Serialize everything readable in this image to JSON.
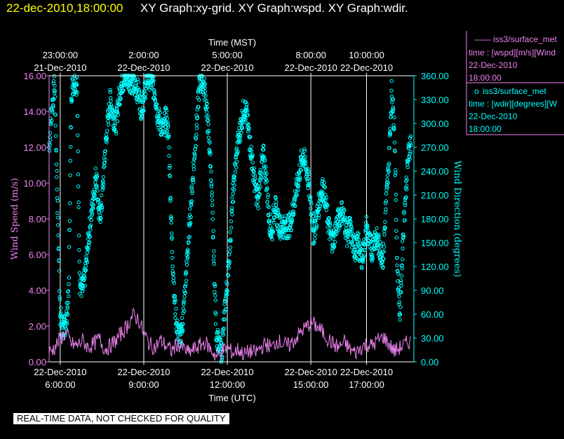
{
  "header": {
    "datetime": "22-dec-2010,18:00:00",
    "graphs": "XY Graph:xy-grid.  XY Graph:wspd.  XY Graph:wdir."
  },
  "footer": {
    "note": "REAL-TIME DATA, NOT CHECKED FOR QUALITY"
  },
  "legend": {
    "wspd": {
      "symbol": "——",
      "source": "iss3/surface_met",
      "var": "time : [wspd][m/s][Wind",
      "date": "22-Dec-2010",
      "time": "18:00:00"
    },
    "wdir": {
      "symbol": "o",
      "source": "iss3/surface_met",
      "var": "time : [wdir][degrees][W",
      "date": "22-Dec-2010",
      "time": "18:00:00"
    }
  },
  "colors": {
    "wspd": "#ee82ee",
    "wdir": "#00ffff",
    "grid": "#ffffff",
    "header_date": "#ffff00"
  },
  "chart_data": {
    "type": "line",
    "grid": true,
    "xlabel_bottom": "Time (UTC)",
    "xlabel_top": "Time (MST)",
    "ylabel_left": "Wind Speed (m/s)",
    "ylabel_right": "Wind Direction (degrees)",
    "xlim_hours_utc": [
      5.6,
      18.7
    ],
    "ylim_left": [
      0,
      16
    ],
    "ylim_right": [
      0,
      360
    ],
    "bottom_ticks": [
      {
        "hour": 6,
        "date": "22-Dec-2010",
        "time": "6:00:00"
      },
      {
        "hour": 9,
        "date": "22-Dec-2010",
        "time": "9:00:00"
      },
      {
        "hour": 12,
        "date": "22-Dec-2010",
        "time": "12:00:00"
      },
      {
        "hour": 15,
        "date": "22-Dec-2010",
        "time": "15:00:00"
      },
      {
        "hour": 17,
        "date": "22-Dec-2010",
        "time": "17:00:00"
      }
    ],
    "top_ticks": [
      {
        "hour": 6,
        "time": "23:00:00",
        "date": "21-Dec-2010"
      },
      {
        "hour": 9,
        "time": "2:00:00",
        "date": "22-Dec-2010"
      },
      {
        "hour": 12,
        "time": "5:00:00",
        "date": "22-Dec-2010"
      },
      {
        "hour": 15,
        "time": "8:00:00",
        "date": "22-Dec-2010"
      },
      {
        "hour": 17,
        "time": "10:00:00",
        "date": "22-Dec-2010"
      }
    ],
    "left_ticks": [
      "0.00",
      "2.00",
      "4.00",
      "6.00",
      "8.00",
      "10.00",
      "12.00",
      "14.00",
      "16.00"
    ],
    "right_ticks": [
      "0.00",
      "30.00",
      "60.00",
      "90.00",
      "120.00",
      "150.00",
      "180.00",
      "210.00",
      "240.00",
      "270.00",
      "300.00",
      "330.00",
      "360.00"
    ],
    "series": [
      {
        "name": "iss3/surface_met wspd",
        "style": "line",
        "axis": "left",
        "x": [
          5.6,
          5.8,
          6.0,
          6.2,
          6.4,
          6.6,
          6.8,
          7.0,
          7.2,
          7.4,
          7.6,
          7.8,
          8.0,
          8.2,
          8.4,
          8.6,
          8.8,
          9.0,
          9.2,
          9.4,
          9.6,
          9.8,
          10.0,
          10.2,
          10.4,
          10.6,
          10.8,
          11.0,
          11.2,
          11.4,
          11.6,
          11.8,
          12.0,
          12.2,
          12.4,
          12.6,
          12.8,
          13.0,
          13.2,
          13.4,
          13.6,
          13.8,
          14.0,
          14.2,
          14.4,
          14.6,
          14.8,
          15.0,
          15.2,
          15.4,
          15.6,
          15.8,
          16.0,
          16.2,
          16.4,
          16.6,
          16.8,
          17.0,
          17.2,
          17.4,
          17.6,
          17.8,
          18.0,
          18.2,
          18.4,
          18.6
        ],
        "values": [
          0.5,
          0.8,
          1.3,
          1.6,
          1.0,
          0.9,
          1.2,
          0.8,
          1.0,
          1.3,
          0.7,
          0.9,
          1.2,
          1.6,
          2.0,
          2.6,
          2.4,
          1.6,
          1.0,
          0.8,
          1.2,
          0.9,
          0.6,
          1.0,
          0.8,
          0.5,
          0.7,
          0.9,
          1.1,
          0.7,
          0.3,
          0.6,
          0.8,
          0.5,
          0.7,
          0.4,
          0.6,
          0.5,
          0.8,
          1.0,
          0.8,
          1.2,
          1.0,
          0.9,
          1.2,
          1.6,
          1.9,
          2.2,
          2.0,
          1.7,
          1.3,
          1.0,
          0.8,
          1.1,
          0.7,
          0.5,
          0.8,
          1.0,
          0.9,
          1.2,
          1.4,
          1.0,
          0.6,
          0.8,
          1.0,
          1.2
        ]
      },
      {
        "name": "iss3/surface_met wdir",
        "style": "scatter",
        "axis": "right",
        "x": [
          5.6,
          5.7,
          5.8,
          5.9,
          6.0,
          6.1,
          6.2,
          6.3,
          6.4,
          6.5,
          6.6,
          6.7,
          6.8,
          6.9,
          7.0,
          7.1,
          7.2,
          7.3,
          7.4,
          7.5,
          7.6,
          7.7,
          7.8,
          7.9,
          8.0,
          8.1,
          8.2,
          8.3,
          8.4,
          8.5,
          8.6,
          8.7,
          8.8,
          8.9,
          9.0,
          9.1,
          9.2,
          9.3,
          9.4,
          9.5,
          9.6,
          9.7,
          9.8,
          9.9,
          10.0,
          10.1,
          10.2,
          10.3,
          10.4,
          10.5,
          10.6,
          10.7,
          10.8,
          10.9,
          11.0,
          11.1,
          11.2,
          11.3,
          11.4,
          11.5,
          11.6,
          11.7,
          11.8,
          11.9,
          12.0,
          12.1,
          12.2,
          12.3,
          12.4,
          12.5,
          12.6,
          12.7,
          12.8,
          12.9,
          13.0,
          13.1,
          13.2,
          13.3,
          13.4,
          13.5,
          13.6,
          13.7,
          13.8,
          13.9,
          14.0,
          14.1,
          14.2,
          14.3,
          14.4,
          14.5,
          14.6,
          14.7,
          14.8,
          14.9,
          15.0,
          15.1,
          15.2,
          15.3,
          15.4,
          15.5,
          15.6,
          15.7,
          15.8,
          15.9,
          16.0,
          16.1,
          16.2,
          16.3,
          16.4,
          16.5,
          16.6,
          16.7,
          16.8,
          16.9,
          17.0,
          17.1,
          17.2,
          17.3,
          17.4,
          17.5,
          17.6,
          17.7,
          17.8,
          17.9,
          18.0,
          18.1,
          18.2,
          18.3,
          18.4,
          18.5,
          18.6
        ],
        "values": [
          270,
          320,
          350,
          200,
          60,
          40,
          50,
          80,
          340,
          355,
          350,
          100,
          90,
          110,
          150,
          180,
          210,
          240,
          180,
          200,
          260,
          300,
          330,
          310,
          300,
          330,
          350,
          355,
          358,
          355,
          350,
          345,
          340,
          320,
          330,
          355,
          358,
          350,
          340,
          310,
          300,
          290,
          310,
          280,
          160,
          80,
          40,
          30,
          50,
          100,
          150,
          200,
          250,
          300,
          350,
          355,
          340,
          300,
          250,
          150,
          40,
          20,
          10,
          60,
          100,
          150,
          210,
          250,
          280,
          300,
          320,
          310,
          280,
          250,
          220,
          200,
          240,
          260,
          230,
          180,
          160,
          200,
          180,
          170,
          170,
          170,
          170,
          180,
          200,
          220,
          240,
          260,
          250,
          230,
          200,
          160,
          180,
          200,
          220,
          210,
          180,
          160,
          150,
          170,
          180,
          190,
          180,
          160,
          170,
          150,
          140,
          150,
          130,
          140,
          170,
          150,
          140,
          160,
          150,
          140,
          130,
          200,
          250,
          340,
          300,
          120,
          60,
          150,
          210,
          260,
          280
        ]
      }
    ]
  }
}
